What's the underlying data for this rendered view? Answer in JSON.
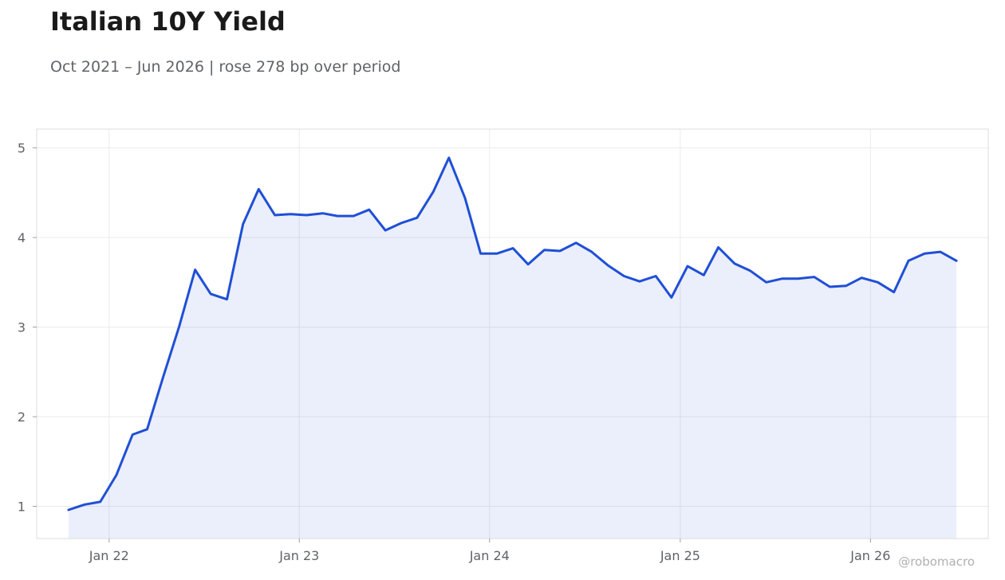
{
  "chart_data": {
    "type": "area",
    "title": "Italian 10Y Yield",
    "subtitle": "Oct 2021 – Jun 2026 | rose 278 bp over period",
    "xlabel": "",
    "ylabel": "",
    "x_ticks": [
      {
        "label": "Jan 22",
        "date": "2022-01-01"
      },
      {
        "label": "Jan 23",
        "date": "2023-01-01"
      },
      {
        "label": "Jan 24",
        "date": "2024-01-01"
      },
      {
        "label": "Jan 25",
        "date": "2025-01-01"
      },
      {
        "label": "Jan 26",
        "date": "2026-01-01"
      }
    ],
    "y_ticks": [
      1,
      2,
      3,
      4,
      5
    ],
    "xlim": [
      "2021-08-15",
      "2026-08-15"
    ],
    "ylim": [
      0.64,
      5.21
    ],
    "grid": true,
    "legend": "none",
    "colors": {
      "line": "#1f4fd6",
      "fill": "#1f4fd6",
      "grid": "#ebebeb",
      "frame": "#dcdcdc"
    },
    "series": [
      {
        "x": [
          "2021-10",
          "2021-11",
          "2021-12",
          "2022-01",
          "2022-02",
          "2022-03",
          "2022-04",
          "2022-05",
          "2022-06",
          "2022-07",
          "2022-08",
          "2022-09",
          "2022-10",
          "2022-11",
          "2022-12",
          "2023-01",
          "2023-02",
          "2023-03",
          "2023-04",
          "2023-05",
          "2023-06",
          "2023-07",
          "2023-08",
          "2023-09",
          "2023-10",
          "2023-11",
          "2023-12",
          "2024-01",
          "2024-02",
          "2024-03",
          "2024-04",
          "2024-05",
          "2024-06",
          "2024-07",
          "2024-08",
          "2024-09",
          "2024-10",
          "2024-11",
          "2024-12",
          "2025-01",
          "2025-02",
          "2025-03",
          "2025-04",
          "2025-05",
          "2025-06",
          "2025-07",
          "2025-08",
          "2025-09",
          "2025-10",
          "2025-11",
          "2025-12",
          "2026-01",
          "2026-02",
          "2026-03",
          "2026-04",
          "2026-05",
          "2026-06"
        ],
        "values": [
          0.96,
          1.02,
          1.05,
          1.35,
          1.8,
          1.86,
          2.45,
          3.0,
          3.64,
          3.37,
          3.31,
          4.15,
          4.54,
          4.25,
          4.26,
          4.25,
          4.27,
          4.24,
          4.24,
          4.31,
          4.08,
          4.16,
          4.22,
          4.51,
          4.89,
          4.44,
          3.82,
          3.82,
          3.88,
          3.7,
          3.86,
          3.85,
          3.94,
          3.84,
          3.69,
          3.57,
          3.51,
          3.57,
          3.33,
          3.68,
          3.58,
          3.89,
          3.71,
          3.63,
          3.5,
          3.54,
          3.54,
          3.56,
          3.45,
          3.46,
          3.55,
          3.5,
          3.39,
          3.74,
          3.82,
          3.84,
          3.74
        ]
      }
    ]
  },
  "watermark": "@robomacro"
}
